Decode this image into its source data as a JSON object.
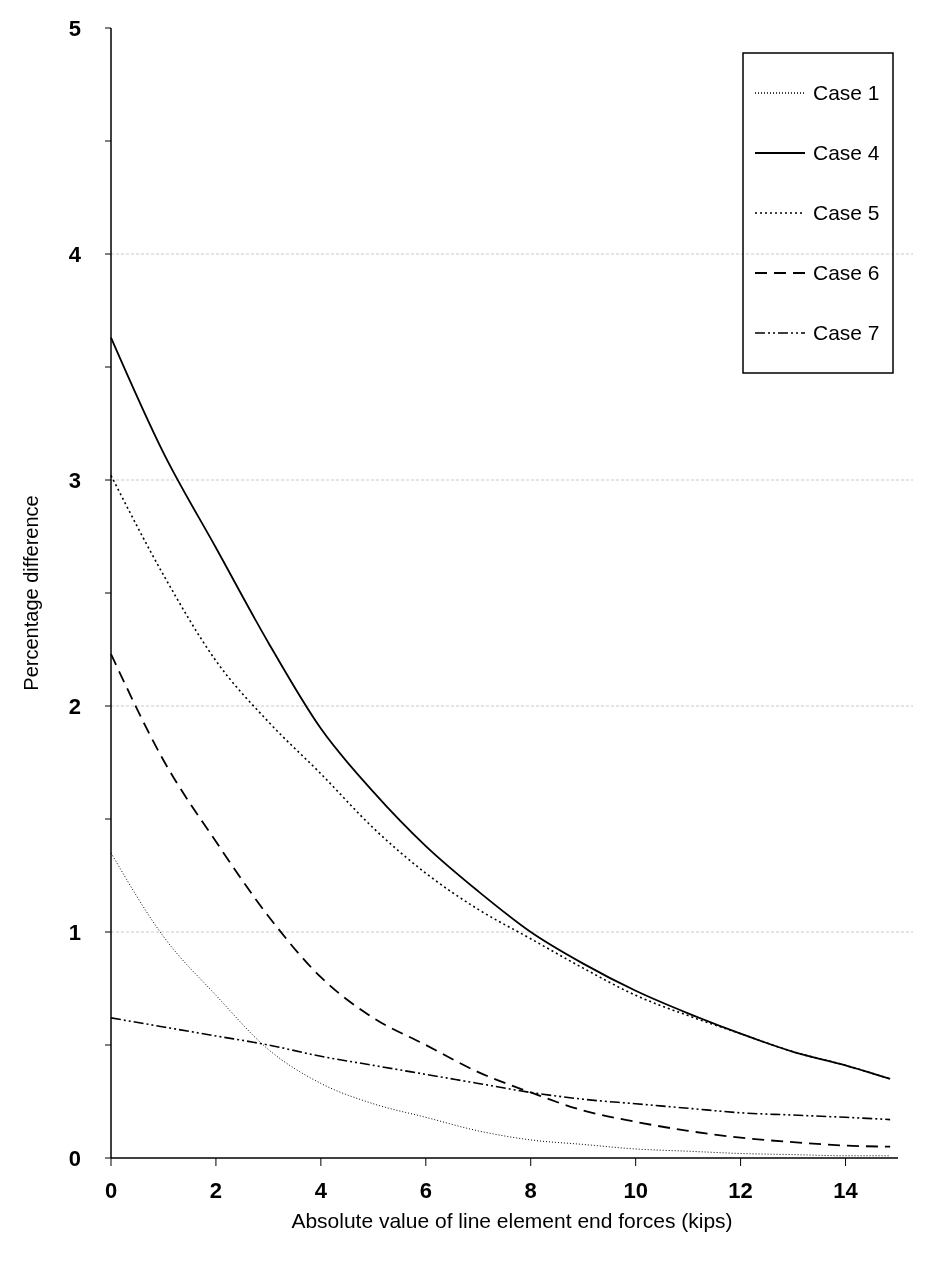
{
  "chart_data": {
    "type": "line",
    "xlabel": "Absolute value of line element end forces (kips)",
    "ylabel": "Percentage difference",
    "xlim": [
      0,
      15
    ],
    "xticks": [
      0,
      2,
      4,
      6,
      8,
      10,
      12,
      14
    ],
    "ylim": [
      0,
      5
    ],
    "yticks": [
      0,
      {
        "value": 0.5,
        "label": null
      },
      1,
      {
        "value": 1.5,
        "label": null
      },
      2,
      {
        "value": 2.5,
        "label": null
      },
      3,
      {
        "value": 3.5,
        "label": null
      },
      4,
      {
        "value": 4.5,
        "label": null
      },
      5
    ],
    "grid": "y",
    "legend": "top right",
    "x": [
      0,
      1,
      2,
      3,
      4,
      5,
      6,
      7,
      8,
      9,
      10,
      11,
      12,
      13,
      14,
      14.85
    ],
    "series": [
      {
        "name": "Case 1",
        "color": "#000000",
        "line_style": "dotted",
        "values": [
          1.35,
          0.98,
          0.72,
          0.48,
          0.33,
          0.24,
          0.18,
          0.12,
          0.08,
          0.06,
          0.04,
          0.03,
          0.02,
          0.015,
          0.01,
          0.01
        ]
      },
      {
        "name": "Case 4",
        "color": "#000000",
        "line_style": "solid",
        "values": [
          3.63,
          3.12,
          2.7,
          2.28,
          1.9,
          1.62,
          1.38,
          1.18,
          1.0,
          0.86,
          0.74,
          0.64,
          0.55,
          0.47,
          0.41,
          0.35
        ]
      },
      {
        "name": "Case 5",
        "color": "#000000",
        "line_style": "dotted",
        "values": [
          3.02,
          2.58,
          2.2,
          1.93,
          1.7,
          1.46,
          1.26,
          1.1,
          0.97,
          0.84,
          0.72,
          0.63,
          0.55,
          0.47,
          0.41,
          0.35
        ]
      },
      {
        "name": "Case 6",
        "color": "#000000",
        "line_style": "dashed",
        "values": [
          2.23,
          1.76,
          1.4,
          1.07,
          0.8,
          0.62,
          0.5,
          0.38,
          0.29,
          0.21,
          0.16,
          0.12,
          0.09,
          0.07,
          0.055,
          0.05
        ]
      },
      {
        "name": "Case 7",
        "color": "#000000",
        "line_style": "dashdot",
        "values": [
          0.62,
          0.58,
          0.54,
          0.5,
          0.45,
          0.41,
          0.37,
          0.33,
          0.29,
          0.26,
          0.24,
          0.22,
          0.2,
          0.19,
          0.18,
          0.17
        ]
      }
    ]
  }
}
